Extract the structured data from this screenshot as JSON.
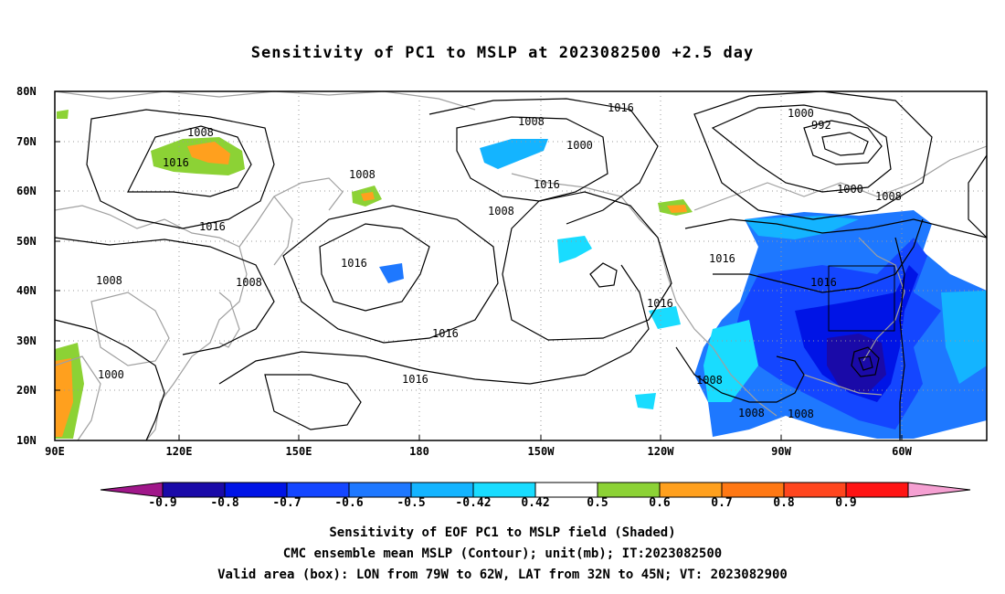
{
  "title": "Sensitivity of PC1 to MSLP at 2023082500 +2.5 day",
  "latitude_labels": [
    "80N",
    "70N",
    "60N",
    "50N",
    "40N",
    "30N",
    "20N",
    "10N"
  ],
  "longitude_labels": [
    "90E",
    "120E",
    "150E",
    "180",
    "150W",
    "120W",
    "90W",
    "60W"
  ],
  "contour_labels": [
    "1008",
    "1016",
    "1016",
    "1008",
    "1008",
    "1000",
    "1008",
    "1016",
    "1016",
    "1016",
    "1016",
    "1008",
    "1000",
    "1008",
    "1016",
    "1000",
    "992",
    "1000",
    "1008",
    "1016",
    "1016",
    "1016",
    "1008",
    "1008",
    "1008"
  ],
  "colorbar": {
    "labels": [
      "-0.9",
      "-0.8",
      "-0.7",
      "-0.6",
      "-0.5",
      "-0.42",
      "0.42",
      "0.5",
      "0.6",
      "0.7",
      "0.8",
      "0.9"
    ],
    "colors": [
      "#a0178a",
      "#1a0aa8",
      "#0014e6",
      "#1446ff",
      "#1e78ff",
      "#14b4ff",
      "#19dcff",
      "#ffffff",
      "#8cd235",
      "#ffa01e",
      "#ff7814",
      "#ff461e",
      "#ff1414",
      "#f5a0d2"
    ]
  },
  "caption": {
    "line1": "Sensitivity of EOF PC1 to MSLP field (Shaded)",
    "line2": "CMC ensemble mean MSLP (Contour); unit(mb); IT:2023082500",
    "line3": "Valid area (box): LON from 79W to 62W, LAT from 32N to 45N; VT: 2023082900"
  }
}
